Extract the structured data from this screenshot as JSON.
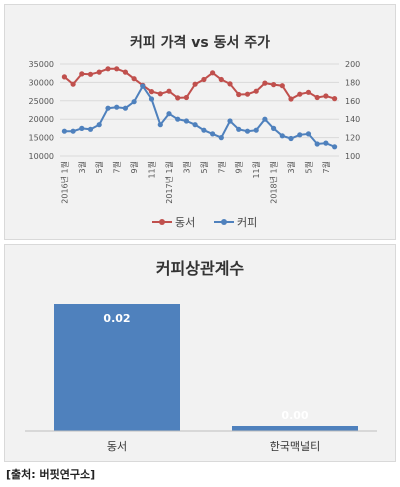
{
  "colors": {
    "series_1": "#c0504d",
    "series_2": "#4f81bd",
    "bar": "#4f81bd"
  },
  "source": "[출처: 버핏연구소]",
  "chart_data": [
    {
      "type": "line",
      "title": "커피 가격 vs 동서 주가",
      "x": [
        "2016년 1월",
        "2월",
        "3월",
        "4월",
        "5월",
        "6월",
        "7월",
        "8월",
        "9월",
        "10월",
        "11월",
        "12월",
        "2017년 1월",
        "2월",
        "3월",
        "4월",
        "5월",
        "6월",
        "7월",
        "8월",
        "9월",
        "10월",
        "11월",
        "12월",
        "2018년 1월",
        "2월",
        "3월",
        "4월",
        "5월",
        "6월",
        "7월",
        "8월"
      ],
      "x_tick_labels": [
        "2016년 1월",
        "",
        "3월",
        "",
        "5월",
        "",
        "7월",
        "",
        "9월",
        "",
        "11월",
        "",
        "2017년 1월",
        "",
        "3월",
        "",
        "5월",
        "",
        "7월",
        "",
        "9월",
        "",
        "11월",
        "",
        "2018년 1월",
        "",
        "3월",
        "",
        "5월",
        "",
        "7월",
        ""
      ],
      "y_left": {
        "ylim": [
          10000,
          35000
        ],
        "ticks": [
          10000,
          15000,
          20000,
          25000,
          30000,
          35000
        ]
      },
      "y_right": {
        "ylim": [
          100,
          200
        ],
        "ticks": [
          100,
          120,
          140,
          160,
          180,
          200
        ]
      },
      "legend": "bottom",
      "grid": true,
      "series": [
        {
          "name": "동서",
          "axis": "left",
          "values": [
            31500,
            29500,
            32300,
            32200,
            32800,
            33700,
            33700,
            32800,
            31000,
            29200,
            27500,
            26900,
            27600,
            25800,
            25900,
            29500,
            30800,
            32600,
            30800,
            29600,
            26700,
            26800,
            27600,
            29800,
            29400,
            29100,
            25500,
            26800,
            27300,
            25900,
            26300,
            25600
          ]
        },
        {
          "name": "커피",
          "axis": "right",
          "values": [
            127,
            127,
            130,
            129,
            134,
            152,
            153,
            152,
            159,
            176,
            162,
            134,
            146,
            140,
            138,
            134,
            128,
            124,
            120,
            138,
            129,
            127,
            128,
            140,
            130,
            122,
            119,
            123,
            124,
            113,
            114,
            110
          ]
        }
      ]
    },
    {
      "type": "bar",
      "title": "커피상관계수",
      "categories": [
        "동서",
        "한국맥널티"
      ],
      "values": [
        0.02,
        0.0
      ],
      "data_labels": [
        "0.02",
        "0.00"
      ]
    }
  ]
}
